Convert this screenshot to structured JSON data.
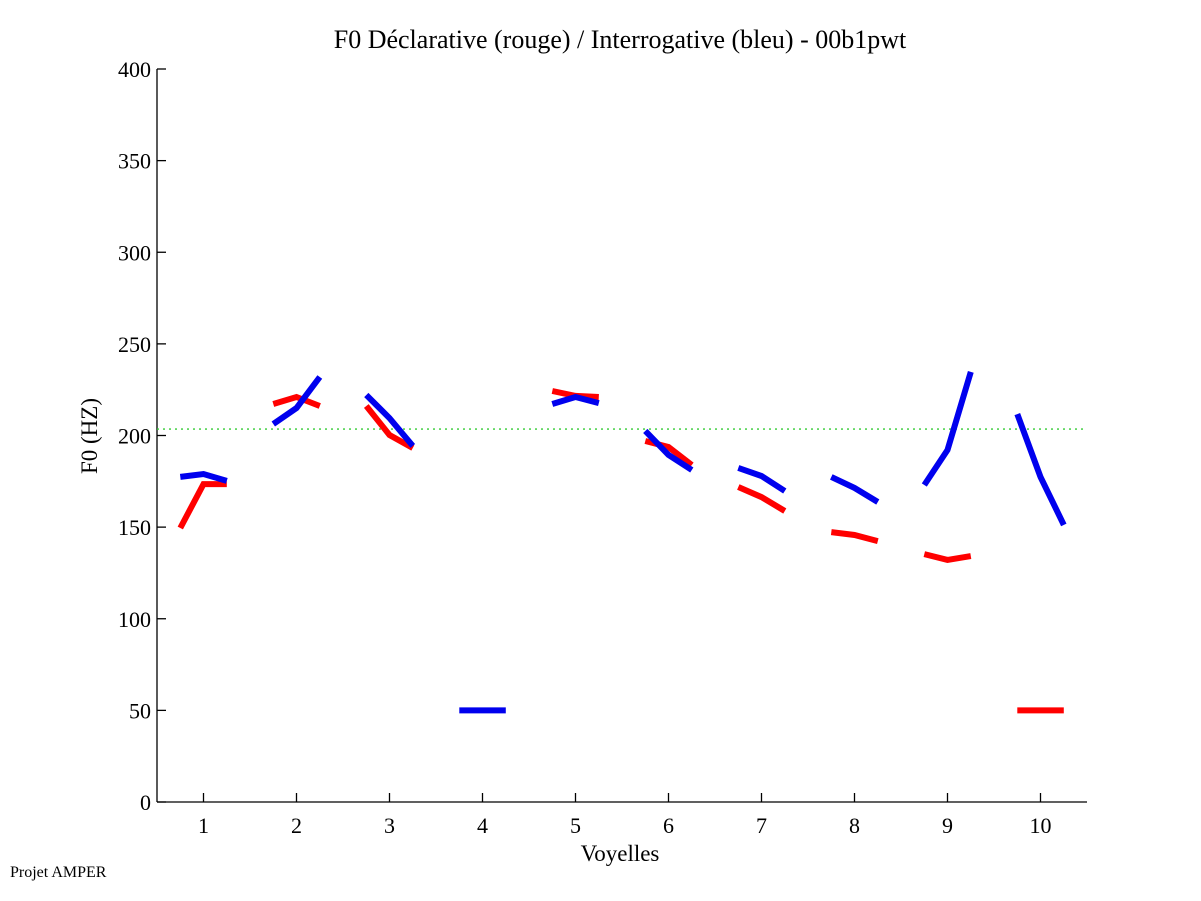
{
  "chart_data": {
    "type": "line",
    "title": "F0 Déclarative (rouge) / Interrogative (bleu) - 00b1pwt",
    "xlabel": "Voyelles",
    "ylabel": "F0 (HZ)",
    "xlim": [
      0.5,
      10.5
    ],
    "ylim": [
      0,
      400
    ],
    "xticks": [
      1,
      2,
      3,
      4,
      5,
      6,
      7,
      8,
      9,
      10
    ],
    "xtick_labels": [
      "1",
      "2",
      "3",
      "4",
      "5",
      "6",
      "7",
      "8",
      "9",
      "10"
    ],
    "yticks": [
      0,
      50,
      100,
      150,
      200,
      250,
      300,
      350,
      400
    ],
    "ytick_labels": [
      "0",
      "50",
      "100",
      "150",
      "200",
      "250",
      "300",
      "350",
      "400"
    ],
    "grid": false,
    "reference_line": {
      "y": 203.5,
      "color": "#33cc33",
      "style": "dotted"
    },
    "series": [
      {
        "name": "Déclarative (rouge)",
        "color": "#ff0000",
        "segments": [
          {
            "vowel": 1,
            "x": [
              0.75,
              1.0,
              1.25
            ],
            "y": [
              149.5,
              173.5,
              173.5
            ]
          },
          {
            "vowel": 2,
            "x": [
              1.75,
              2.0,
              2.25
            ],
            "y": [
              217.2,
              221.0,
              216.1
            ]
          },
          {
            "vowel": 3,
            "x": [
              2.75,
              3.0,
              3.25
            ],
            "y": [
              216.1,
              200.3,
              193.2
            ]
          },
          {
            "vowel": 5,
            "x": [
              4.75,
              5.0,
              5.25
            ],
            "y": [
              224.3,
              221.6,
              221.0
            ]
          },
          {
            "vowel": 6,
            "x": [
              5.75,
              6.0,
              6.25
            ],
            "y": [
              197.0,
              193.7,
              183.9
            ]
          },
          {
            "vowel": 7,
            "x": [
              6.75,
              7.0,
              7.25
            ],
            "y": [
              171.9,
              166.4,
              158.8
            ]
          },
          {
            "vowel": 8,
            "x": [
              7.75,
              8.0,
              8.25
            ],
            "y": [
              147.3,
              145.7,
              142.4
            ]
          },
          {
            "vowel": 9,
            "x": [
              8.75,
              9.0,
              9.25
            ],
            "y": [
              135.3,
              132.1,
              134.2
            ]
          },
          {
            "vowel": 10,
            "x": [
              9.75,
              10.0,
              10.25
            ],
            "y": [
              50,
              50,
              50
            ]
          }
        ]
      },
      {
        "name": "Interrogative (bleu)",
        "color": "#0000ee",
        "segments": [
          {
            "vowel": 1,
            "x": [
              0.75,
              1.0,
              1.25
            ],
            "y": [
              177.4,
              179.0,
              175.2
            ]
          },
          {
            "vowel": 2,
            "x": [
              1.75,
              2.0,
              2.25
            ],
            "y": [
              206.3,
              215.0,
              231.9
            ]
          },
          {
            "vowel": 3,
            "x": [
              2.75,
              3.0,
              3.25
            ],
            "y": [
              222.1,
              209.5,
              194.3
            ]
          },
          {
            "vowel": 4,
            "x": [
              3.75,
              4.0,
              4.25
            ],
            "y": [
              50,
              50,
              50
            ]
          },
          {
            "vowel": 5,
            "x": [
              4.75,
              5.0,
              5.25
            ],
            "y": [
              217.2,
              221.0,
              217.7
            ]
          },
          {
            "vowel": 6,
            "x": [
              5.75,
              6.0,
              6.25
            ],
            "y": [
              202.5,
              189.4,
              181.2
            ]
          },
          {
            "vowel": 7,
            "x": [
              6.75,
              7.0,
              7.25
            ],
            "y": [
              182.3,
              177.9,
              169.7
            ]
          },
          {
            "vowel": 8,
            "x": [
              7.75,
              8.0,
              8.25
            ],
            "y": [
              177.4,
              171.4,
              163.7
            ]
          },
          {
            "vowel": 9,
            "x": [
              8.75,
              9.0,
              9.25
            ],
            "y": [
              173.0,
              192.1,
              234.7
            ]
          },
          {
            "vowel": 10,
            "x": [
              9.75,
              10.0,
              10.25
            ],
            "y": [
              211.7,
              177.4,
              151.2
            ]
          }
        ]
      }
    ]
  },
  "footer": "Projet AMPER"
}
